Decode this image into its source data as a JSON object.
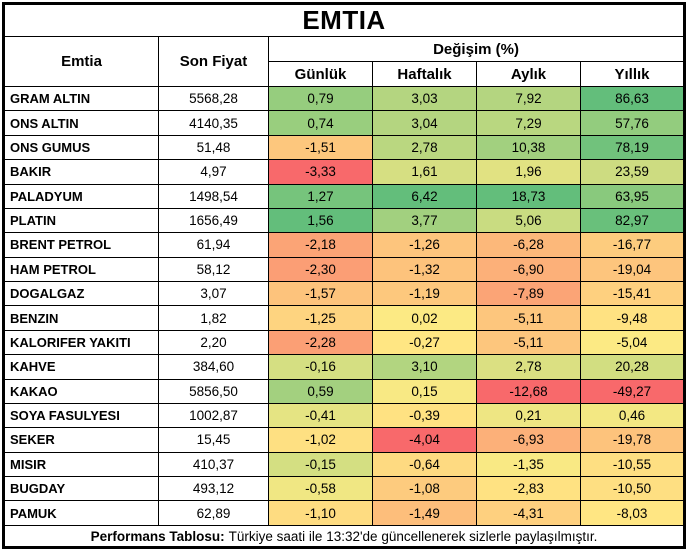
{
  "title": "EMTIA",
  "header": {
    "commodity": "Emtia",
    "last_price": "Son Fiyat",
    "change_group": "Değişim (%)",
    "periods": [
      "Günlük",
      "Haftalık",
      "Aylık",
      "Yıllık"
    ]
  },
  "footer": {
    "label": "Performans Tablosu:",
    "text": "Türkiye saati ile 13:32'de güncellenerek sizlerle paylaşılmıştır."
  },
  "colors": {
    "scale_min": "#F8696B",
    "scale_mid": "#FFEB84",
    "scale_max": "#63BE7B",
    "border": "#000000",
    "text": "#000000",
    "background": "#FFFFFF"
  },
  "chart_data": {
    "type": "table",
    "title": "EMTIA",
    "columns": [
      "Emtia",
      "Son Fiyat",
      "Günlük",
      "Haftalık",
      "Aylık",
      "Yıllık"
    ],
    "column_group": {
      "label": "Değişim (%)",
      "columns": [
        "Günlük",
        "Haftalık",
        "Aylık",
        "Yıllık"
      ]
    },
    "decimal_separator": ",",
    "conditional_format": "3-color-scale per change column: min red, 50th percentile yellow, max green",
    "rows": [
      [
        "GRAM ALTIN",
        5568.28,
        0.79,
        3.03,
        7.92,
        86.63
      ],
      [
        "ONS ALTIN",
        4140.35,
        0.74,
        3.04,
        7.29,
        57.76
      ],
      [
        "ONS GUMUS",
        51.48,
        -1.51,
        2.78,
        10.38,
        78.19
      ],
      [
        "BAKIR",
        4.97,
        -3.33,
        1.61,
        1.96,
        23.59
      ],
      [
        "PALADYUM",
        1498.54,
        1.27,
        6.42,
        18.73,
        63.95
      ],
      [
        "PLATIN",
        1656.49,
        1.56,
        3.77,
        5.06,
        82.97
      ],
      [
        "BRENT PETROL",
        61.94,
        -2.18,
        -1.26,
        -6.28,
        -16.77
      ],
      [
        "HAM PETROL",
        58.12,
        -2.3,
        -1.32,
        -6.9,
        -19.04
      ],
      [
        "DOGALGAZ",
        3.07,
        -1.57,
        -1.19,
        -7.89,
        -15.41
      ],
      [
        "BENZIN",
        1.82,
        -1.25,
        0.02,
        -5.11,
        -9.48
      ],
      [
        "KALORIFER YAKITI",
        2.2,
        -2.28,
        -0.27,
        -5.11,
        -5.04
      ],
      [
        "KAHVE",
        384.6,
        -0.16,
        3.1,
        2.78,
        20.28
      ],
      [
        "KAKAO",
        5856.5,
        0.59,
        0.15,
        -12.68,
        -49.27
      ],
      [
        "SOYA FASULYESI",
        1002.87,
        -0.41,
        -0.39,
        0.21,
        0.46
      ],
      [
        "SEKER",
        15.45,
        -1.02,
        -4.04,
        -6.93,
        -19.78
      ],
      [
        "MISIR",
        410.37,
        -0.15,
        -0.64,
        -1.35,
        -10.55
      ],
      [
        "BUGDAY",
        493.12,
        -0.58,
        -1.08,
        -2.83,
        -10.5
      ],
      [
        "PAMUK",
        62.89,
        -1.1,
        -1.49,
        -4.31,
        -8.03
      ]
    ]
  }
}
